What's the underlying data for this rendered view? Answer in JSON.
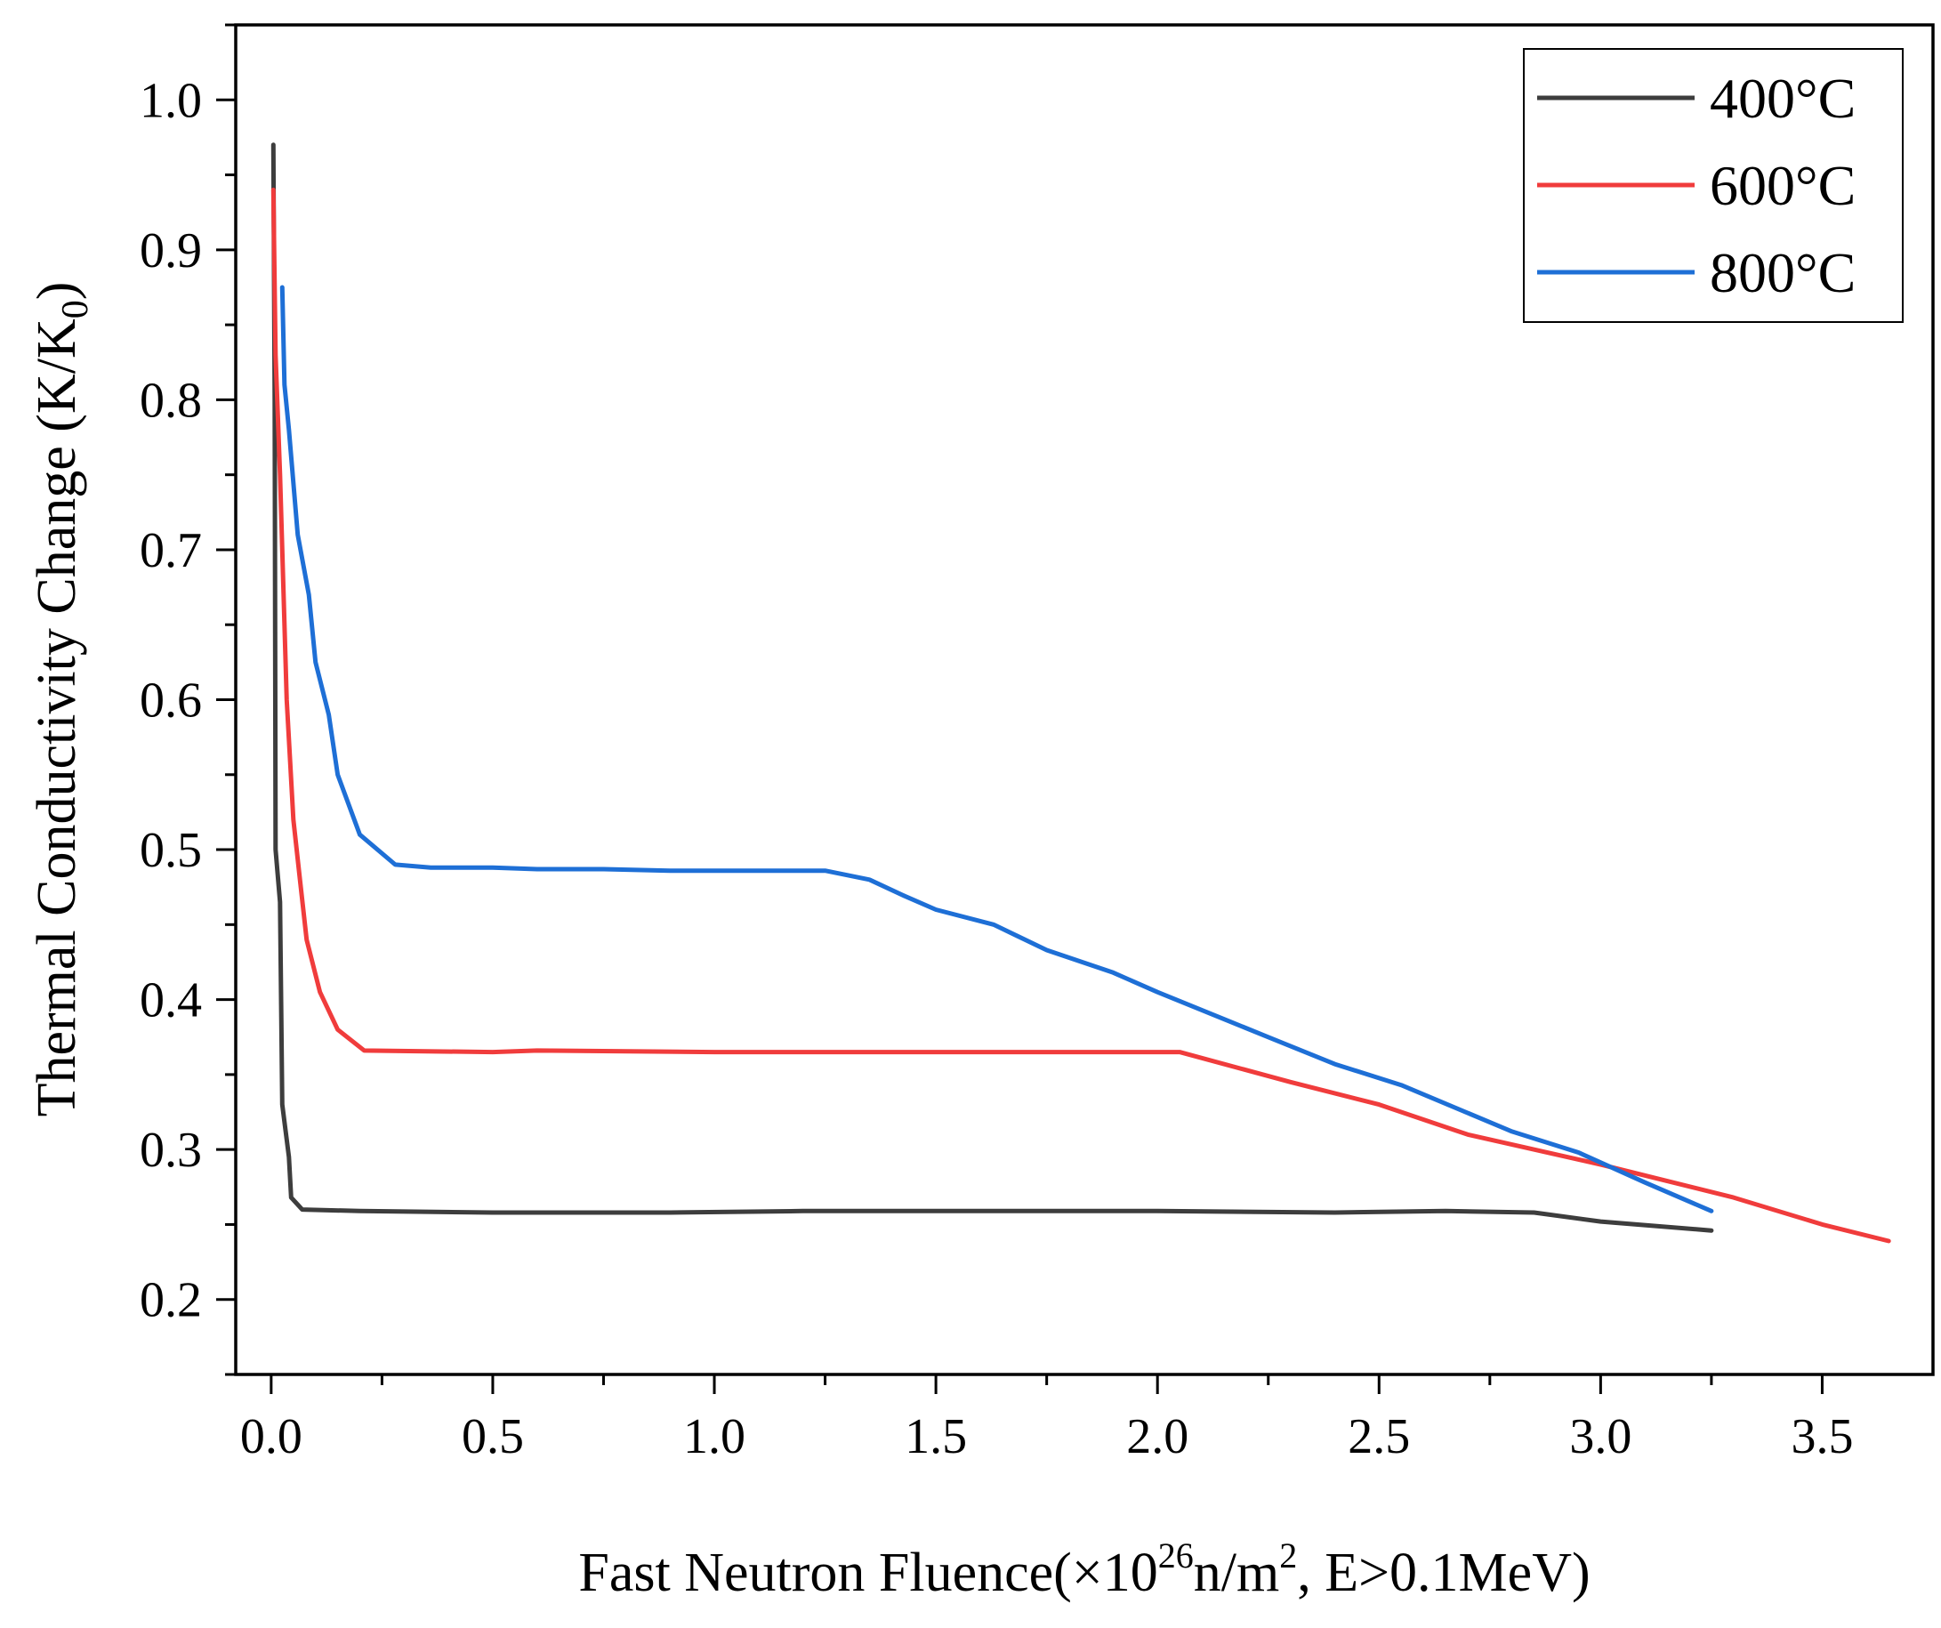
{
  "chart_data": {
    "type": "line",
    "xlabel": {
      "main": "Fast Neutron Fluence(×10",
      "exp": "26",
      "mid": "n/m",
      "exp2": "2",
      "tail": ", E>0.1MeV)"
    },
    "ylabel": {
      "main": "Thermal Conductivity Change (K/K",
      "sub": "0",
      "tail": ")"
    },
    "xlim": [
      -0.08,
      3.75
    ],
    "ylim": [
      0.15,
      1.05
    ],
    "xticks": [
      0.0,
      0.5,
      1.0,
      1.5,
      2.0,
      2.5,
      3.0,
      3.5
    ],
    "xtick_labels": [
      "0.0",
      "0.5",
      "1.0",
      "1.5",
      "2.0",
      "2.5",
      "3.0",
      "3.5"
    ],
    "yticks": [
      0.2,
      0.3,
      0.4,
      0.5,
      0.6,
      0.7,
      0.8,
      0.9,
      1.0
    ],
    "ytick_labels": [
      "0.2",
      "0.3",
      "0.4",
      "0.5",
      "0.6",
      "0.7",
      "0.8",
      "0.9",
      "1.0"
    ],
    "grid": false,
    "legend": "top-right",
    "series": [
      {
        "name": "400°C",
        "color": "#3d3d3d",
        "points": [
          [
            0.005,
            0.97
          ],
          [
            0.008,
            0.8
          ],
          [
            0.01,
            0.5
          ],
          [
            0.02,
            0.465
          ],
          [
            0.025,
            0.33
          ],
          [
            0.04,
            0.295
          ],
          [
            0.045,
            0.268
          ],
          [
            0.07,
            0.26
          ],
          [
            0.2,
            0.259
          ],
          [
            0.5,
            0.258
          ],
          [
            0.9,
            0.258
          ],
          [
            1.2,
            0.259
          ],
          [
            2.0,
            0.259
          ],
          [
            2.4,
            0.258
          ],
          [
            2.65,
            0.259
          ],
          [
            2.85,
            0.258
          ],
          [
            3.0,
            0.252
          ],
          [
            3.25,
            0.246
          ]
        ]
      },
      {
        "name": "600°C",
        "color": "#f03c3c",
        "points": [
          [
            0.005,
            0.94
          ],
          [
            0.01,
            0.83
          ],
          [
            0.02,
            0.75
          ],
          [
            0.035,
            0.6
          ],
          [
            0.05,
            0.52
          ],
          [
            0.065,
            0.48
          ],
          [
            0.08,
            0.44
          ],
          [
            0.11,
            0.405
          ],
          [
            0.15,
            0.38
          ],
          [
            0.21,
            0.366
          ],
          [
            0.5,
            0.365
          ],
          [
            0.6,
            0.366
          ],
          [
            1.0,
            0.365
          ],
          [
            1.5,
            0.365
          ],
          [
            2.05,
            0.365
          ],
          [
            2.3,
            0.345
          ],
          [
            2.5,
            0.33
          ],
          [
            2.7,
            0.31
          ],
          [
            3.0,
            0.29
          ],
          [
            3.3,
            0.268
          ],
          [
            3.5,
            0.25
          ],
          [
            3.65,
            0.239
          ]
        ]
      },
      {
        "name": "800°C",
        "color": "#1e6fd6",
        "points": [
          [
            0.025,
            0.875
          ],
          [
            0.03,
            0.81
          ],
          [
            0.04,
            0.78
          ],
          [
            0.06,
            0.71
          ],
          [
            0.085,
            0.67
          ],
          [
            0.1,
            0.625
          ],
          [
            0.13,
            0.59
          ],
          [
            0.15,
            0.55
          ],
          [
            0.2,
            0.51
          ],
          [
            0.28,
            0.49
          ],
          [
            0.36,
            0.488
          ],
          [
            0.5,
            0.488
          ],
          [
            0.6,
            0.487
          ],
          [
            0.75,
            0.487
          ],
          [
            0.9,
            0.486
          ],
          [
            1.25,
            0.486
          ],
          [
            1.35,
            0.48
          ],
          [
            1.43,
            0.469
          ],
          [
            1.5,
            0.46
          ],
          [
            1.63,
            0.45
          ],
          [
            1.75,
            0.433
          ],
          [
            1.9,
            0.418
          ],
          [
            2.0,
            0.405
          ],
          [
            2.25,
            0.375
          ],
          [
            2.4,
            0.357
          ],
          [
            2.55,
            0.343
          ],
          [
            2.8,
            0.312
          ],
          [
            2.95,
            0.298
          ],
          [
            3.1,
            0.278
          ],
          [
            3.25,
            0.259
          ]
        ]
      }
    ]
  }
}
